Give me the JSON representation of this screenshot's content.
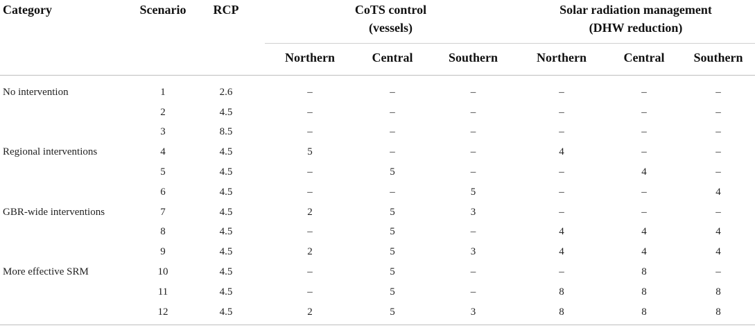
{
  "headers": {
    "category": "Category",
    "scenario": "Scenario",
    "rcp": "RCP",
    "cots_group": "CoTS control",
    "cots_group_sub": "(vessels)",
    "srm_group": "Solar radiation management",
    "srm_group_sub": "(DHW reduction)",
    "regions": [
      "Northern",
      "Central",
      "Southern"
    ]
  },
  "rows": [
    {
      "category": "No intervention",
      "scenario": "1",
      "rcp": "2.6",
      "cots": [
        "–",
        "–",
        "–"
      ],
      "srm": [
        "–",
        "–",
        "–"
      ]
    },
    {
      "category": "",
      "scenario": "2",
      "rcp": "4.5",
      "cots": [
        "–",
        "–",
        "–"
      ],
      "srm": [
        "–",
        "–",
        "–"
      ]
    },
    {
      "category": "",
      "scenario": "3",
      "rcp": "8.5",
      "cots": [
        "–",
        "–",
        "–"
      ],
      "srm": [
        "–",
        "–",
        "–"
      ]
    },
    {
      "category": "Regional interventions",
      "scenario": "4",
      "rcp": "4.5",
      "cots": [
        "5",
        "–",
        "–"
      ],
      "srm": [
        "4",
        "–",
        "–"
      ]
    },
    {
      "category": "",
      "scenario": "5",
      "rcp": "4.5",
      "cots": [
        "–",
        "5",
        "–"
      ],
      "srm": [
        "–",
        "4",
        "–"
      ]
    },
    {
      "category": "",
      "scenario": "6",
      "rcp": "4.5",
      "cots": [
        "–",
        "–",
        "5"
      ],
      "srm": [
        "–",
        "–",
        "4"
      ]
    },
    {
      "category": "GBR-wide interventions",
      "scenario": "7",
      "rcp": "4.5",
      "cots": [
        "2",
        "5",
        "3"
      ],
      "srm": [
        "–",
        "–",
        "–"
      ]
    },
    {
      "category": "",
      "scenario": "8",
      "rcp": "4.5",
      "cots": [
        "–",
        "5",
        "–"
      ],
      "srm": [
        "4",
        "4",
        "4"
      ]
    },
    {
      "category": "",
      "scenario": "9",
      "rcp": "4.5",
      "cots": [
        "2",
        "5",
        "3"
      ],
      "srm": [
        "4",
        "4",
        "4"
      ]
    },
    {
      "category": "More effective SRM",
      "scenario": "10",
      "rcp": "4.5",
      "cots": [
        "–",
        "5",
        "–"
      ],
      "srm": [
        "–",
        "8",
        "–"
      ]
    },
    {
      "category": "",
      "scenario": "11",
      "rcp": "4.5",
      "cots": [
        "–",
        "5",
        "–"
      ],
      "srm": [
        "8",
        "8",
        "8"
      ]
    },
    {
      "category": "",
      "scenario": "12",
      "rcp": "4.5",
      "cots": [
        "2",
        "5",
        "3"
      ],
      "srm": [
        "8",
        "8",
        "8"
      ]
    }
  ]
}
